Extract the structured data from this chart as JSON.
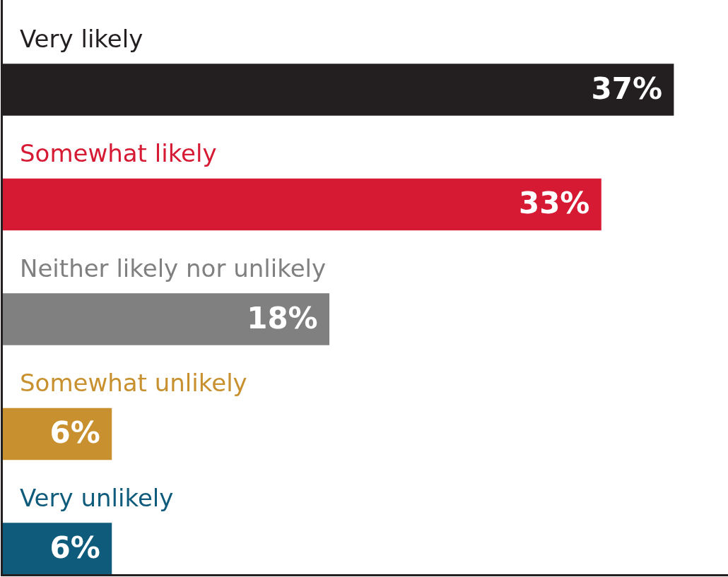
{
  "chart_data": {
    "type": "bar",
    "orientation": "horizontal",
    "categories": [
      "Very likely",
      "Somewhat likely",
      "Neither likely nor unlikely",
      "Somewhat unlikely",
      "Very unlikely"
    ],
    "values": [
      37,
      33,
      18,
      6,
      6
    ],
    "colors": [
      "#231f20",
      "#d71a33",
      "#808080",
      "#c8902e",
      "#0f5b7b"
    ],
    "value_labels": [
      "37%",
      "33%",
      "18%",
      "6%",
      "6%"
    ],
    "xlim": [
      0,
      40
    ],
    "legend": false
  }
}
